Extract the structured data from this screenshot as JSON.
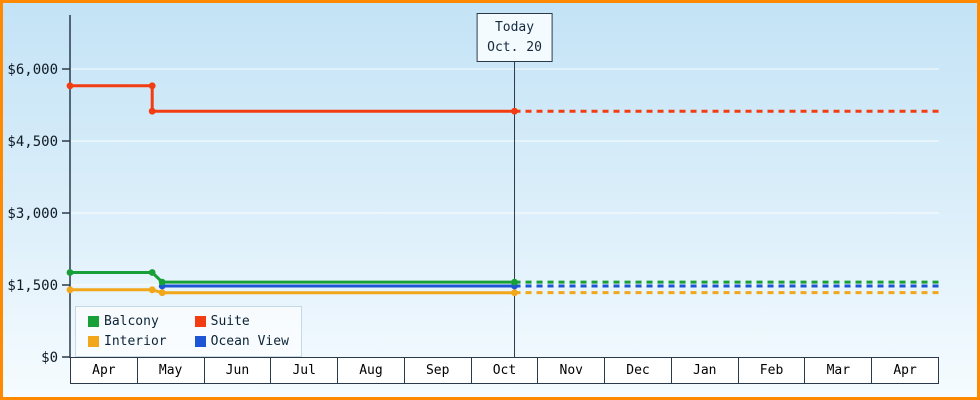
{
  "colors": {
    "border": "#ff8a00",
    "bg_top": "#c3e3f6",
    "bg_mid": "#ddeffa",
    "bg_bottom": "#f6fcff",
    "axis": "#2b3a4a",
    "grid": "rgba(255,255,255,0.85)",
    "text": "#0f1a24"
  },
  "chart_data": {
    "type": "line",
    "y_axis": {
      "ticks": [
        {
          "value": 0,
          "label": "$0"
        },
        {
          "value": 1500,
          "label": "$1,500"
        },
        {
          "value": 3000,
          "label": "$3,000"
        },
        {
          "value": 4500,
          "label": "$4,500"
        },
        {
          "value": 6000,
          "label": "$6,000"
        }
      ],
      "range": [
        0,
        7125
      ],
      "grid": true
    },
    "x_axis": {
      "months": [
        "Apr",
        "May",
        "Jun",
        "Jul",
        "Aug",
        "Sep",
        "Oct",
        "Nov",
        "Dec",
        "Jan",
        "Feb",
        "Mar",
        "Apr"
      ]
    },
    "today": {
      "line1": "Today",
      "line2": "Oct. 20",
      "month_index": 6,
      "day_fraction": 0.65
    },
    "series": [
      {
        "name": "Balcony",
        "color": "#18a038",
        "points": [
          [
            0,
            1760
          ],
          [
            1.23,
            1760
          ],
          [
            1.38,
            1560
          ]
        ],
        "current": 1560,
        "projection": "dashed"
      },
      {
        "name": "Suite",
        "color": "#f23d12",
        "points": [
          [
            0,
            5650
          ],
          [
            1.23,
            5650
          ],
          [
            1.23,
            5120
          ]
        ],
        "current": 5120,
        "projection": "dashed"
      },
      {
        "name": "Interior",
        "color": "#f2a71b",
        "points": [
          [
            0,
            1400
          ],
          [
            1.23,
            1400
          ],
          [
            1.38,
            1340
          ]
        ],
        "current": 1340,
        "projection": "dashed"
      },
      {
        "name": "Ocean View",
        "color": "#1d55d4",
        "points": [
          [
            1.38,
            1480
          ]
        ],
        "current": 1480,
        "projection": "dashed"
      }
    ],
    "legend": {
      "position": "bottom-left",
      "order": [
        "Balcony",
        "Suite",
        "Interior",
        "Ocean View"
      ]
    }
  }
}
